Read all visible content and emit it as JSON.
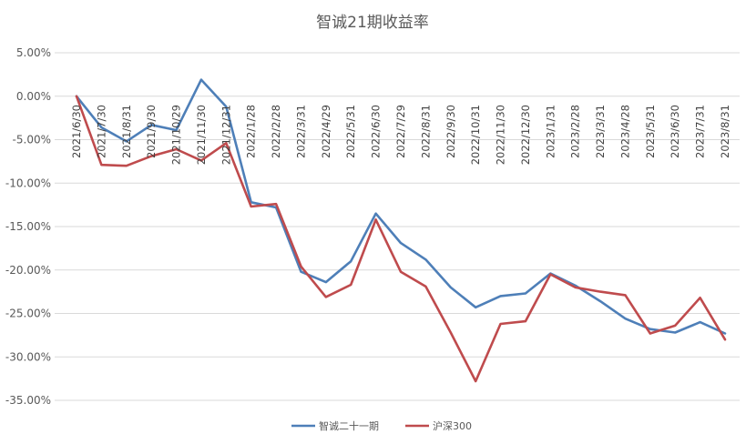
{
  "chart_data": {
    "type": "line",
    "title": "智诚21期收益率",
    "xlabel": "",
    "ylabel": "",
    "ylim": [
      -0.35,
      0.05
    ],
    "yticks": [
      0.05,
      0.0,
      -0.05,
      -0.1,
      -0.15,
      -0.2,
      -0.25,
      -0.3,
      -0.35
    ],
    "ytick_labels": [
      "5.00%",
      "0.00%",
      "-5.00%",
      "-10.00%",
      "-15.00%",
      "-20.00%",
      "-25.00%",
      "-30.00%",
      "-35.00%"
    ],
    "grid": true,
    "legend_position": "bottom",
    "categories": [
      "2021/6/30",
      "2021/7/30",
      "2021/8/31",
      "2021/9/30",
      "2021/10/29",
      "2021/11/30",
      "2021/12/31",
      "2022/1/28",
      "2022/2/28",
      "2022/3/31",
      "2022/4/29",
      "2022/5/31",
      "2022/6/30",
      "2022/7/29",
      "2022/8/31",
      "2022/9/30",
      "2022/10/31",
      "2022/11/30",
      "2022/12/30",
      "2023/1/31",
      "2023/2/28",
      "2023/3/31",
      "2023/4/28",
      "2023/5/31",
      "2023/6/30",
      "2023/7/31",
      "2023/8/31"
    ],
    "series": [
      {
        "name": "智诚二十一期",
        "color": "#4e7fb8",
        "values": [
          0.0,
          -0.036,
          -0.052,
          -0.033,
          -0.039,
          0.019,
          -0.012,
          -0.122,
          -0.128,
          -0.202,
          -0.214,
          -0.19,
          -0.135,
          -0.169,
          -0.188,
          -0.22,
          -0.243,
          -0.23,
          -0.227,
          -0.204,
          -0.218,
          -0.236,
          -0.256,
          -0.268,
          -0.272,
          -0.26,
          -0.273
        ]
      },
      {
        "name": "沪深300",
        "color": "#bf4b4d",
        "values": [
          0.0,
          -0.079,
          -0.08,
          -0.069,
          -0.061,
          -0.074,
          -0.054,
          -0.127,
          -0.124,
          -0.196,
          -0.231,
          -0.217,
          -0.142,
          -0.202,
          -0.219,
          -0.272,
          -0.328,
          -0.262,
          -0.259,
          -0.205,
          -0.22,
          -0.225,
          -0.229,
          -0.273,
          -0.264,
          -0.232,
          -0.28
        ]
      }
    ]
  }
}
